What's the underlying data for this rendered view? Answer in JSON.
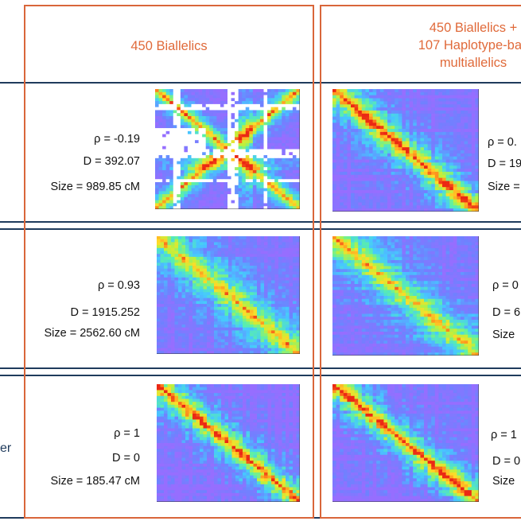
{
  "columns": [
    {
      "header": "450 Biallelics"
    },
    {
      "header_lines": [
        "450 Biallelics +",
        "107 Haplotype-bas",
        "multiallelics"
      ]
    }
  ],
  "rows": [
    {
      "label": "",
      "cells": [
        {
          "rho": "ρ = -0.19",
          "d": "D = 392.07",
          "size": "Size = 989.85 cM",
          "pattern": "crossed"
        },
        {
          "rho": "ρ = 0.",
          "d": "D = 19",
          "size": "Size =",
          "pattern": "diagonal-strong"
        }
      ]
    },
    {
      "label": "",
      "cells": [
        {
          "rho": "ρ = 0.93",
          "d": "D = 1915.252",
          "size": "Size = 2562.60 cM",
          "pattern": "diagonal-faint"
        },
        {
          "rho": "ρ = 0",
          "d": "D = 6",
          "size": "Size",
          "pattern": "diagonal-faint"
        }
      ]
    },
    {
      "label": "er",
      "cells": [
        {
          "rho": "ρ = 1",
          "d": "D = 0",
          "size": "Size = 185.47 cM",
          "pattern": "diagonal-strong"
        },
        {
          "rho": "ρ = 1",
          "d": "D = 0",
          "size": "Size",
          "pattern": "diagonal-strong"
        }
      ]
    }
  ],
  "colors": {
    "accent_orange": "#d9663a",
    "header_text": "#e06a3a",
    "divider_navy": "#1f3b5c"
  }
}
